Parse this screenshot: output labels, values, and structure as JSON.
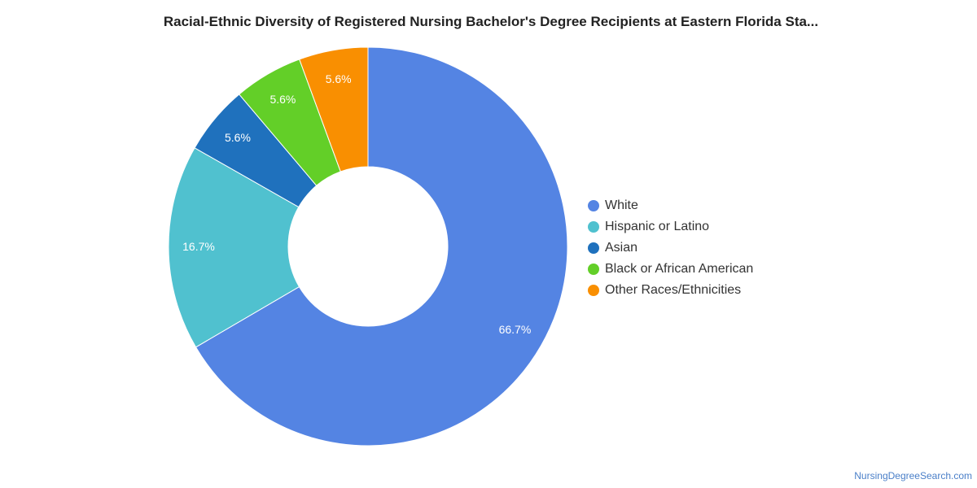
{
  "chart_data": {
    "type": "pie",
    "style": "donut",
    "title": "Racial-Ethnic Diversity of Registered Nursing Bachelor's Degree Recipients at Eastern Florida Sta...",
    "categories": [
      "White",
      "Hispanic or Latino",
      "Asian",
      "Black or African American",
      "Other Races/Ethnicities"
    ],
    "values": [
      66.7,
      16.7,
      5.6,
      5.6,
      5.6
    ],
    "value_labels": [
      "66.7%",
      "16.7%",
      "5.6%",
      "5.6%",
      "5.6%"
    ],
    "colors": [
      "#5484e3",
      "#50c1cf",
      "#1f71bd",
      "#63cf28",
      "#f98f01"
    ],
    "legend": "right"
  },
  "source": "NursingDegreeSearch.com"
}
